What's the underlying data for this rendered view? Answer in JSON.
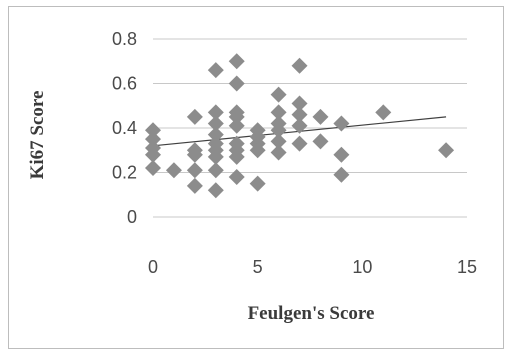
{
  "chart_data": {
    "type": "scatter",
    "title": "",
    "xlabel": "Feulgen's Score",
    "ylabel": "Ki67 Score",
    "xlim": [
      0,
      15
    ],
    "ylim": [
      0,
      0.8
    ],
    "x_ticks": [
      0,
      5,
      10,
      15
    ],
    "y_ticks": [
      0,
      0.2,
      0.4,
      0.6,
      0.8
    ],
    "x_tick_labels": [
      "0",
      "5",
      "10",
      "15"
    ],
    "y_tick_labels": [
      "0",
      "0.2",
      "0.4",
      "0.6",
      "0.8"
    ],
    "grid": "horizontal",
    "marker": "diamond",
    "marker_color": "#8c8c8c",
    "trendline": {
      "type": "linear",
      "color": "#404040",
      "x": [
        0,
        14
      ],
      "y": [
        0.32,
        0.45
      ]
    },
    "points": [
      [
        0,
        0.39
      ],
      [
        0,
        0.35
      ],
      [
        0,
        0.31
      ],
      [
        0,
        0.28
      ],
      [
        0,
        0.22
      ],
      [
        1,
        0.21
      ],
      [
        2,
        0.45
      ],
      [
        2,
        0.3
      ],
      [
        2,
        0.28
      ],
      [
        2,
        0.21
      ],
      [
        2,
        0.14
      ],
      [
        3,
        0.66
      ],
      [
        3,
        0.47
      ],
      [
        3,
        0.42
      ],
      [
        3,
        0.37
      ],
      [
        3,
        0.33
      ],
      [
        3,
        0.3
      ],
      [
        3,
        0.27
      ],
      [
        3,
        0.21
      ],
      [
        3,
        0.12
      ],
      [
        4,
        0.7
      ],
      [
        4,
        0.6
      ],
      [
        4,
        0.47
      ],
      [
        4,
        0.45
      ],
      [
        4,
        0.41
      ],
      [
        4,
        0.33
      ],
      [
        4,
        0.3
      ],
      [
        4,
        0.27
      ],
      [
        4,
        0.18
      ],
      [
        5,
        0.39
      ],
      [
        5,
        0.36
      ],
      [
        5,
        0.33
      ],
      [
        5,
        0.3
      ],
      [
        5,
        0.15
      ],
      [
        6,
        0.55
      ],
      [
        6,
        0.47
      ],
      [
        6,
        0.42
      ],
      [
        6,
        0.39
      ],
      [
        6,
        0.34
      ],
      [
        6,
        0.29
      ],
      [
        7,
        0.68
      ],
      [
        7,
        0.51
      ],
      [
        7,
        0.46
      ],
      [
        7,
        0.41
      ],
      [
        7,
        0.33
      ],
      [
        8,
        0.45
      ],
      [
        8,
        0.34
      ],
      [
        9,
        0.42
      ],
      [
        9,
        0.28
      ],
      [
        9,
        0.19
      ],
      [
        11,
        0.47
      ],
      [
        14,
        0.3
      ]
    ]
  }
}
